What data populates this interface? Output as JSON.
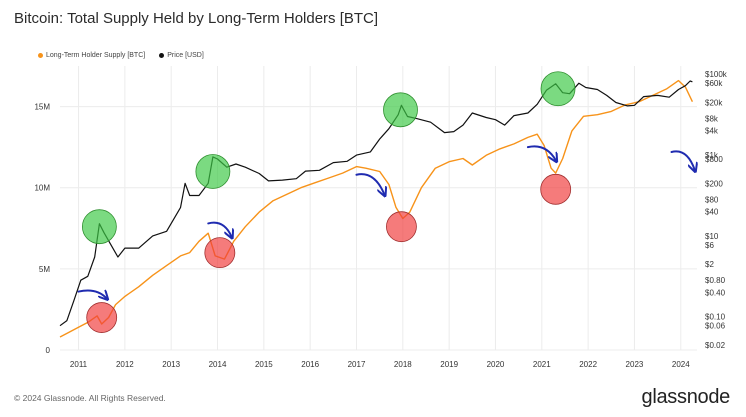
{
  "chart_data": {
    "type": "line",
    "title": "Bitcoin: Total Supply Held by Long-Term Holders [BTC]",
    "legend": [
      {
        "label": "Long-Term Holder Supply [BTC]",
        "color": "#f7931a"
      },
      {
        "label": "Price [USD]",
        "color": "#111111"
      }
    ],
    "legend_position": "top-left",
    "grid": true,
    "x_ticks": [
      "2011",
      "2012",
      "2013",
      "2014",
      "2015",
      "2016",
      "2017",
      "2018",
      "2019",
      "2020",
      "2021",
      "2022",
      "2023",
      "2024"
    ],
    "x_range": [
      2010.6,
      2024.35
    ],
    "left_axis": {
      "ticks": [
        "0",
        "5M",
        "10M",
        "15M"
      ],
      "values": [
        0,
        5000000,
        10000000,
        15000000
      ],
      "range": [
        0,
        17500000
      ]
    },
    "right_axis": {
      "scale": "log",
      "ticks": [
        "$100k",
        "$60k",
        "$20k",
        "$8k",
        "$4k",
        "$1k",
        "$800",
        "$200",
        "$80",
        "$40",
        "$10",
        "$6",
        "$2",
        "$0.80",
        "$0.40",
        "$0.10",
        "$0.06",
        "$0.02"
      ],
      "values": [
        100000,
        60000,
        20000,
        8000,
        4000,
        1000,
        800,
        200,
        80,
        40,
        10,
        6,
        2,
        0.8,
        0.4,
        0.1,
        0.06,
        0.02
      ],
      "range": [
        0.015,
        160000
      ]
    },
    "series": [
      {
        "name": "Long-Term Holder Supply [BTC]",
        "color": "#f7931a",
        "axis": "left",
        "points": [
          [
            2010.6,
            800000
          ],
          [
            2010.8,
            1100000
          ],
          [
            2011.0,
            1400000
          ],
          [
            2011.2,
            1700000
          ],
          [
            2011.4,
            2100000
          ],
          [
            2011.5,
            1600000
          ],
          [
            2011.65,
            2000000
          ],
          [
            2011.8,
            2800000
          ],
          [
            2012.0,
            3300000
          ],
          [
            2012.3,
            3900000
          ],
          [
            2012.6,
            4600000
          ],
          [
            2012.9,
            5200000
          ],
          [
            2013.2,
            5800000
          ],
          [
            2013.4,
            6000000
          ],
          [
            2013.6,
            6700000
          ],
          [
            2013.8,
            7200000
          ],
          [
            2013.95,
            5800000
          ],
          [
            2014.15,
            5600000
          ],
          [
            2014.35,
            6700000
          ],
          [
            2014.6,
            7600000
          ],
          [
            2014.9,
            8500000
          ],
          [
            2015.2,
            9200000
          ],
          [
            2015.5,
            9600000
          ],
          [
            2015.8,
            10000000
          ],
          [
            2016.1,
            10300000
          ],
          [
            2016.4,
            10600000
          ],
          [
            2016.7,
            10900000
          ],
          [
            2017.0,
            11300000
          ],
          [
            2017.2,
            11200000
          ],
          [
            2017.5,
            11000000
          ],
          [
            2017.7,
            10200000
          ],
          [
            2017.85,
            8800000
          ],
          [
            2018.0,
            8100000
          ],
          [
            2018.15,
            8500000
          ],
          [
            2018.4,
            10000000
          ],
          [
            2018.7,
            11200000
          ],
          [
            2019.0,
            11600000
          ],
          [
            2019.3,
            11800000
          ],
          [
            2019.5,
            11400000
          ],
          [
            2019.8,
            12000000
          ],
          [
            2020.1,
            12400000
          ],
          [
            2020.4,
            12700000
          ],
          [
            2020.7,
            13100000
          ],
          [
            2020.9,
            13300000
          ],
          [
            2021.05,
            12600000
          ],
          [
            2021.2,
            11200000
          ],
          [
            2021.3,
            10900000
          ],
          [
            2021.45,
            11800000
          ],
          [
            2021.65,
            13500000
          ],
          [
            2021.9,
            14400000
          ],
          [
            2022.2,
            14500000
          ],
          [
            2022.5,
            14700000
          ],
          [
            2022.8,
            15100000
          ],
          [
            2023.1,
            15300000
          ],
          [
            2023.4,
            15700000
          ],
          [
            2023.7,
            16100000
          ],
          [
            2023.95,
            16600000
          ],
          [
            2024.1,
            16200000
          ],
          [
            2024.25,
            15300000
          ]
        ]
      },
      {
        "name": "Price [USD]",
        "color": "#111111",
        "axis": "right",
        "points": [
          [
            2010.6,
            0.06
          ],
          [
            2010.75,
            0.08
          ],
          [
            2010.9,
            0.25
          ],
          [
            2011.05,
            0.8
          ],
          [
            2011.2,
            1.0
          ],
          [
            2011.35,
            3.0
          ],
          [
            2011.45,
            20
          ],
          [
            2011.55,
            12
          ],
          [
            2011.7,
            6
          ],
          [
            2011.85,
            3
          ],
          [
            2012.0,
            5
          ],
          [
            2012.3,
            5
          ],
          [
            2012.6,
            10
          ],
          [
            2012.9,
            13
          ],
          [
            2013.2,
            50
          ],
          [
            2013.3,
            200
          ],
          [
            2013.4,
            100
          ],
          [
            2013.6,
            100
          ],
          [
            2013.8,
            200
          ],
          [
            2013.9,
            900
          ],
          [
            2014.0,
            800
          ],
          [
            2014.2,
            500
          ],
          [
            2014.4,
            600
          ],
          [
            2014.6,
            500
          ],
          [
            2014.9,
            350
          ],
          [
            2015.1,
            230
          ],
          [
            2015.4,
            240
          ],
          [
            2015.7,
            260
          ],
          [
            2015.9,
            400
          ],
          [
            2016.2,
            420
          ],
          [
            2016.5,
            650
          ],
          [
            2016.8,
            700
          ],
          [
            2017.0,
            1000
          ],
          [
            2017.3,
            1200
          ],
          [
            2017.5,
            2500
          ],
          [
            2017.7,
            4500
          ],
          [
            2017.9,
            10000
          ],
          [
            2017.97,
            17000
          ],
          [
            2018.1,
            9000
          ],
          [
            2018.3,
            8000
          ],
          [
            2018.6,
            6500
          ],
          [
            2018.9,
            3600
          ],
          [
            2019.1,
            3800
          ],
          [
            2019.3,
            5500
          ],
          [
            2019.5,
            11000
          ],
          [
            2019.8,
            8500
          ],
          [
            2020.0,
            7500
          ],
          [
            2020.2,
            5500
          ],
          [
            2020.4,
            9500
          ],
          [
            2020.7,
            11000
          ],
          [
            2020.9,
            18000
          ],
          [
            2021.1,
            40000
          ],
          [
            2021.3,
            58000
          ],
          [
            2021.45,
            35000
          ],
          [
            2021.6,
            33000
          ],
          [
            2021.8,
            60000
          ],
          [
            2021.95,
            47000
          ],
          [
            2022.2,
            42000
          ],
          [
            2022.4,
            30000
          ],
          [
            2022.6,
            20000
          ],
          [
            2022.85,
            16500
          ],
          [
            2023.0,
            17000
          ],
          [
            2023.2,
            28000
          ],
          [
            2023.5,
            30000
          ],
          [
            2023.75,
            27000
          ],
          [
            2023.95,
            42000
          ],
          [
            2024.1,
            52000
          ],
          [
            2024.2,
            68000
          ],
          [
            2024.25,
            65000
          ]
        ]
      }
    ],
    "annotations": {
      "green_circles": [
        [
          2011.45,
          7600000
        ],
        [
          2013.9,
          11000000
        ],
        [
          2017.95,
          14800000
        ],
        [
          2021.35,
          16100000
        ]
      ],
      "red_circles": [
        [
          2011.5,
          2000000
        ],
        [
          2014.05,
          6000000
        ],
        [
          2017.97,
          7600000
        ],
        [
          2021.3,
          9900000
        ]
      ],
      "arrows": [
        [
          2011.0,
          3600000,
          2011.6,
          3200000
        ],
        [
          2013.8,
          7800000,
          2014.3,
          7000000
        ],
        [
          2017.0,
          10800000,
          2017.6,
          9600000
        ],
        [
          2020.7,
          12500000,
          2021.3,
          11700000
        ],
        [
          2023.8,
          12200000,
          2024.3,
          11100000
        ]
      ]
    }
  },
  "footer": {
    "copyright": "© 2024 Glassnode. All Rights Reserved.",
    "brand": "glassnode"
  }
}
